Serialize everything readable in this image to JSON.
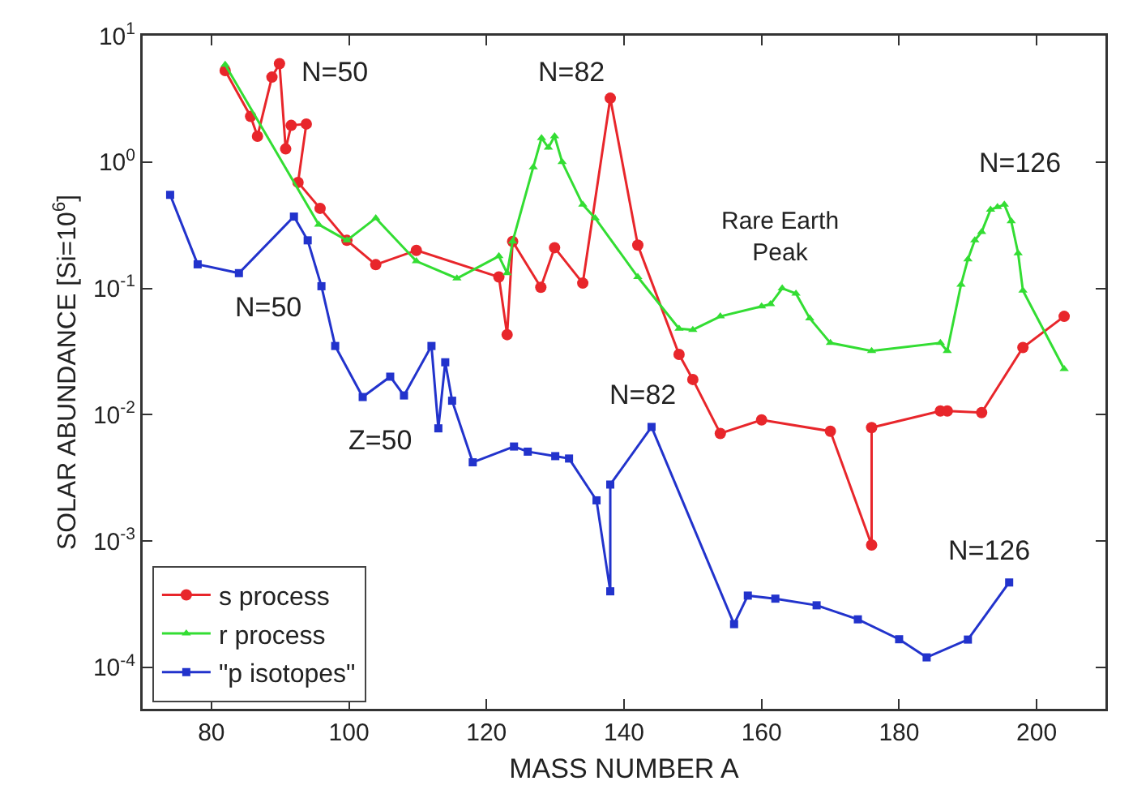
{
  "chart_data": {
    "type": "line",
    "xlabel": "MASS NUMBER A",
    "ylabel": "SOLAR ABUNDANCE [Si=10$^{6}$]",
    "log": "y",
    "grid": false,
    "legend": "bottom left",
    "line_style": "solid",
    "xlim": [
      70,
      210
    ],
    "xticks": [
      80,
      100,
      120,
      140,
      160,
      180,
      200
    ],
    "ylim": [
      4.7e-05,
      10
    ],
    "yticks": [
      {
        "value": 0.0001,
        "label": "10$^{-4}$"
      },
      {
        "value": 0.001,
        "label": "10$^{-3}$"
      },
      {
        "value": 0.01,
        "label": "10$^{-2}$"
      },
      {
        "value": 0.1,
        "label": "10$^{-1}$"
      },
      {
        "value": 1,
        "label": "10$^{0}$"
      },
      {
        "value": 10,
        "label": "10$^{1}$"
      }
    ],
    "series": [
      {
        "name": "s process",
        "color": "#e8262b",
        "marker": "circle",
        "x": [
          82,
          85.7,
          86.7,
          88.8,
          89.9,
          90.8,
          91.6,
          93.8,
          92.6,
          95.8,
          99.7,
          103.9,
          109.8,
          121.8,
          123,
          123.8,
          127.9,
          129.9,
          134,
          138,
          142,
          148,
          150,
          154,
          160,
          170,
          176,
          176,
          186,
          187,
          192,
          198,
          204
        ],
        "values": [
          5.3,
          2.3,
          1.6,
          4.7,
          6.0,
          1.27,
          1.95,
          2.0,
          0.69,
          0.43,
          0.24,
          0.154,
          0.2,
          0.123,
          0.043,
          0.235,
          0.102,
          0.21,
          0.11,
          3.2,
          0.22,
          0.03,
          0.019,
          0.0071,
          0.0091,
          0.0074,
          0.00093,
          0.0079,
          0.0107,
          0.0107,
          0.0104,
          0.034,
          0.06
        ]
      },
      {
        "name": "r process",
        "color": "#33dd33",
        "marker": "triangle",
        "x": [
          82,
          95.6,
          99.7,
          103.9,
          109.8,
          115.7,
          121.8,
          123,
          123.8,
          126.8,
          128,
          129,
          129.9,
          131,
          134,
          135.8,
          142,
          148,
          150,
          154,
          160,
          161.3,
          163,
          165,
          167,
          170,
          176,
          186,
          187,
          189,
          190,
          191,
          192,
          193.3,
          194.3,
          195.3,
          196.3,
          197.3,
          198,
          204
        ],
        "values": [
          5.9,
          0.32,
          0.24,
          0.36,
          0.164,
          0.12,
          0.18,
          0.132,
          0.235,
          0.91,
          1.55,
          1.3,
          1.6,
          1.0,
          0.46,
          0.36,
          0.123,
          0.048,
          0.047,
          0.06,
          0.072,
          0.075,
          0.1,
          0.091,
          0.058,
          0.037,
          0.032,
          0.037,
          0.032,
          0.107,
          0.17,
          0.24,
          0.28,
          0.42,
          0.44,
          0.46,
          0.34,
          0.19,
          0.096,
          0.023
        ]
      },
      {
        "name": "\"p isotopes\"",
        "color": "#2233cc",
        "marker": "square",
        "x": [
          74,
          78,
          84,
          92,
          94,
          96,
          98,
          102,
          106,
          108,
          112,
          113,
          114,
          115,
          118,
          124,
          126,
          130,
          132,
          136,
          138,
          138,
          144,
          156,
          158,
          162,
          168,
          174,
          180,
          184,
          190,
          196
        ],
        "values": [
          0.55,
          0.155,
          0.132,
          0.37,
          0.24,
          0.104,
          0.035,
          0.0138,
          0.02,
          0.0142,
          0.035,
          0.0078,
          0.026,
          0.0129,
          0.0042,
          0.0056,
          0.0051,
          0.0047,
          0.0045,
          0.0021,
          0.0004,
          0.0028,
          0.008,
          0.00022,
          0.00037,
          0.00035,
          0.00031,
          0.00024,
          0.000167,
          0.00012,
          0.000166,
          0.00047
        ]
      }
    ],
    "annotations": [
      "N=50",
      "N=82",
      "N=126",
      "Rare Earth\nPeak",
      "N=50",
      "Z=50",
      "N=82",
      "N=126"
    ]
  }
}
